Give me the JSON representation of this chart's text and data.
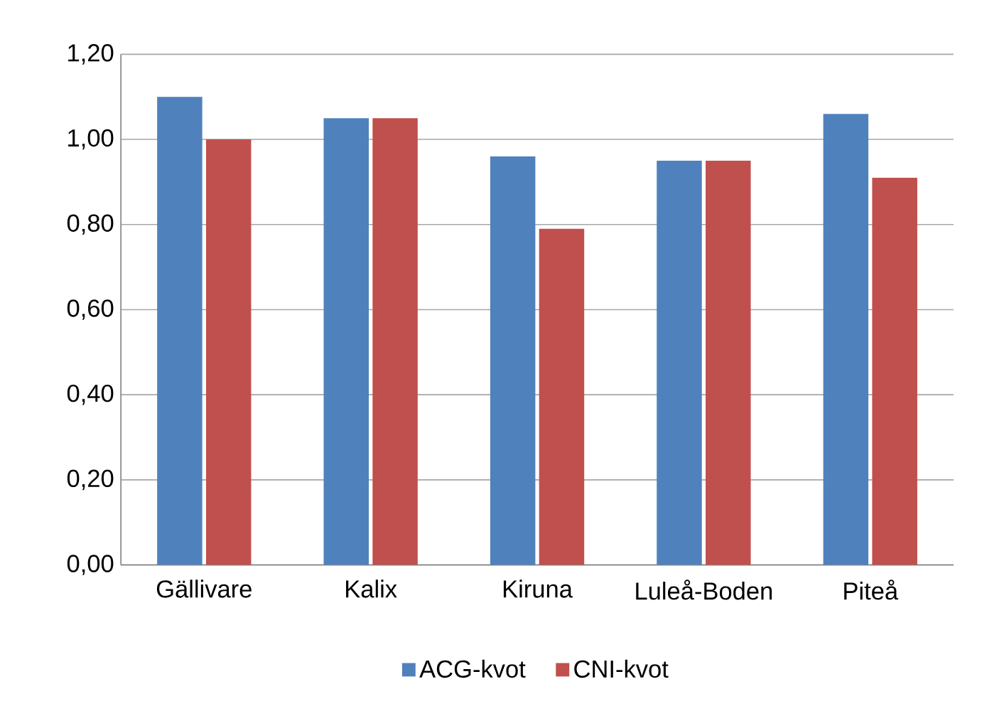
{
  "chart_data": {
    "type": "bar",
    "categories": [
      "Gällivare",
      "Kalix",
      "Kiruna",
      "Luleå-Boden",
      "Piteå"
    ],
    "series": [
      {
        "name": "ACG-kvot",
        "color": "#4f81bd",
        "values": [
          1.1,
          1.05,
          0.96,
          0.95,
          1.06
        ]
      },
      {
        "name": "CNI-kvot",
        "color": "#c0504d",
        "values": [
          1.0,
          1.05,
          0.79,
          0.95,
          0.91
        ]
      }
    ],
    "ylim": [
      0,
      1.2
    ],
    "yticks": [
      {
        "value": 0,
        "label": "0,00"
      },
      {
        "value": 0.2,
        "label": "0,20"
      },
      {
        "value": 0.4,
        "label": "0,40"
      },
      {
        "value": 0.6,
        "label": "0,60"
      },
      {
        "value": 0.8,
        "label": "0,80"
      },
      {
        "value": 1.0,
        "label": "1,00"
      },
      {
        "value": 1.2,
        "label": "1,20"
      }
    ],
    "grid": "y",
    "legend": "bottom"
  }
}
